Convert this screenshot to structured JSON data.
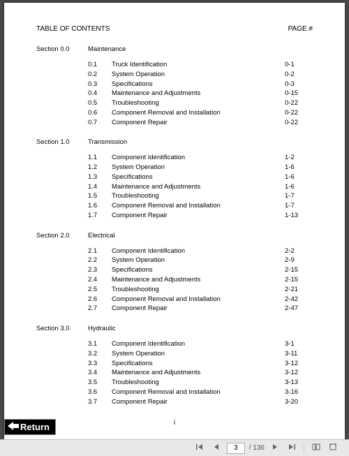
{
  "document": {
    "toc_title": "TABLE OF CONTENTS",
    "page_label": "PAGE #",
    "footer_page_number": "i",
    "sections": [
      {
        "label": "Section 0.0",
        "title": "Maintenance",
        "items": [
          {
            "num": "0.1",
            "name": "Truck Identification",
            "page": "0-1"
          },
          {
            "num": "0.2",
            "name": "System Operation",
            "page": "0-2"
          },
          {
            "num": "0.3",
            "name": "Specifications",
            "page": "0-3"
          },
          {
            "num": "0.4",
            "name": "Maintenance and Adjustments",
            "page": "0-15"
          },
          {
            "num": "0.5",
            "name": "Troubleshooting",
            "page": "0-22"
          },
          {
            "num": "0.6",
            "name": "Component Removal and Installation",
            "page": "0-22"
          },
          {
            "num": "0.7",
            "name": "Component Repair",
            "page": "0-22"
          }
        ]
      },
      {
        "label": "Section 1.0",
        "title": "Transmission",
        "items": [
          {
            "num": "1.1",
            "name": "Component Identification",
            "page": "1-2"
          },
          {
            "num": "1.2",
            "name": "System Operation",
            "page": "1-6"
          },
          {
            "num": "1.3",
            "name": "Specifications",
            "page": "1-6"
          },
          {
            "num": "1.4",
            "name": "Maintenance and Adjustments",
            "page": "1-6"
          },
          {
            "num": "1.5",
            "name": "Troubleshooting",
            "page": "1-7"
          },
          {
            "num": "1.6",
            "name": "Component Removal and Installation",
            "page": "1-7"
          },
          {
            "num": "1.7",
            "name": "Component Repair",
            "page": "1-13"
          }
        ]
      },
      {
        "label": "Section 2.0",
        "title": "Electrical",
        "items": [
          {
            "num": "2.1",
            "name": "Component Identification",
            "page": "2-2"
          },
          {
            "num": "2.2",
            "name": "System Operation",
            "page": "2-9"
          },
          {
            "num": "2.3",
            "name": "Specifications",
            "page": "2-15"
          },
          {
            "num": "2.4",
            "name": "Maintenance and Adjustments",
            "page": "2-15"
          },
          {
            "num": "2.5",
            "name": "Troubleshooting",
            "page": "2-21"
          },
          {
            "num": "2.6",
            "name": "Component Removal and Installation",
            "page": "2-42"
          },
          {
            "num": "2.7",
            "name": "Component Repair",
            "page": "2-47"
          }
        ]
      },
      {
        "label": "Section 3.0",
        "title": "Hydraulic",
        "items": [
          {
            "num": "3.1",
            "name": "Component Identification",
            "page": "3-1"
          },
          {
            "num": "3.2",
            "name": "System Operation",
            "page": "3-11"
          },
          {
            "num": "3.3",
            "name": "Specifications",
            "page": "3-12"
          },
          {
            "num": "3.4",
            "name": "Maintenance and Adjustments",
            "page": "3-12"
          },
          {
            "num": "3.5",
            "name": "Troubleshooting",
            "page": "3-13"
          },
          {
            "num": "3.6",
            "name": "Component Removal and Installation",
            "page": "3-16"
          },
          {
            "num": "3.7",
            "name": "Component Repair",
            "page": "3-20"
          }
        ]
      }
    ]
  },
  "return_button": {
    "label": "Return"
  },
  "toolbar": {
    "current_page": "3",
    "total_pages": "/ 136"
  }
}
